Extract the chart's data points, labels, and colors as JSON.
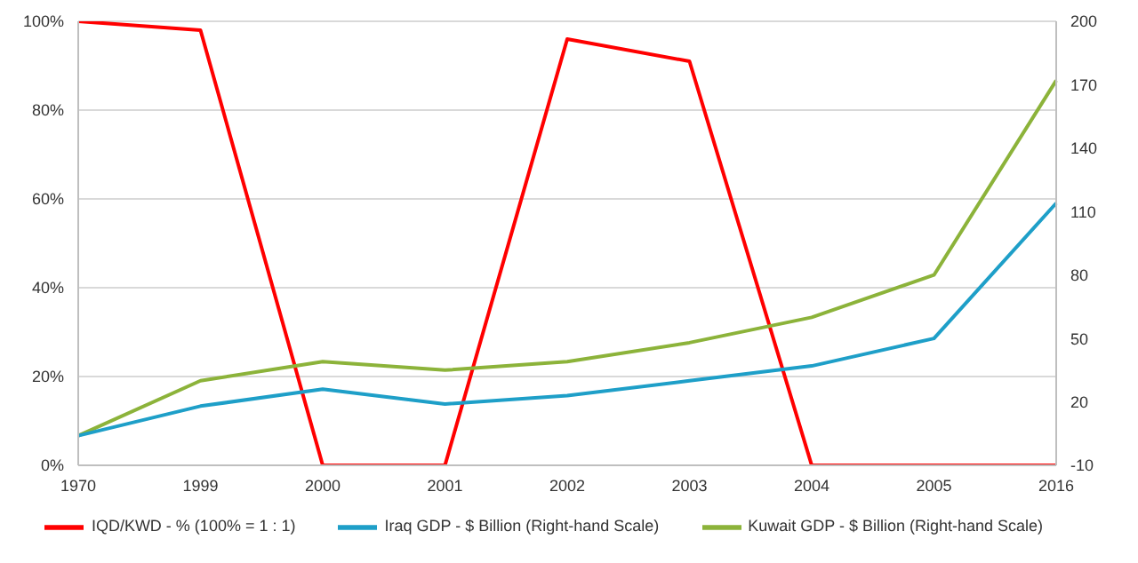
{
  "chart_data": {
    "type": "line",
    "categories": [
      "1970",
      "1999",
      "2000",
      "2001",
      "2002",
      "2003",
      "2004",
      "2005",
      "2016"
    ],
    "series": [
      {
        "name": "IQD/KWD - % (100% = 1 : 1)",
        "color": "#ff0000",
        "values": [
          100,
          98,
          0,
          0,
          96,
          91,
          0,
          0,
          0
        ]
      },
      {
        "name": "Kuwait GDP - $ Billion (Right-hand Scale)",
        "color": "#8cb33a",
        "axis": "y2",
        "values": [
          4,
          30,
          39,
          35,
          39,
          48,
          60,
          80,
          172
        ]
      },
      {
        "name": "Iraq GDP - $ Billion (Right-hand Scale)",
        "color": "#1e9fc8",
        "axis": "y2",
        "values": [
          4,
          18,
          26,
          19,
          23,
          30,
          37,
          50,
          114
        ]
      }
    ],
    "ylim": [
      0,
      100
    ],
    "yticks": [
      {
        "value": 0,
        "label": "0%"
      },
      {
        "value": 20,
        "label": "20%"
      },
      {
        "value": 40,
        "label": "40%"
      },
      {
        "value": 60,
        "label": "60%"
      },
      {
        "value": 80,
        "label": "80%"
      },
      {
        "value": 100,
        "label": "100%"
      }
    ],
    "y2lim": [
      -10,
      200
    ],
    "y2ticks": [
      -10,
      20,
      50,
      80,
      110,
      140,
      170,
      200
    ],
    "grid": "y",
    "legend": "bottom",
    "marker": "none",
    "line_style": "solid"
  }
}
